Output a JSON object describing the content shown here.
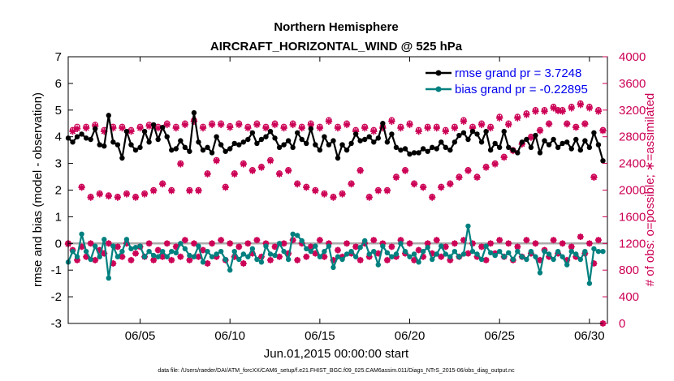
{
  "chart_data": {
    "type": "line",
    "title": "Northern Hemisphere",
    "subtitle": "AIRCRAFT_HORIZONTAL_WIND @ 525 hPa",
    "xlabel": "Jun.01,2015 00:00:00 start",
    "ylabel": "rmse and bias (model - observation)",
    "ylabel_right": "# of obs: o=possible; ∗=assimilated",
    "xlim": [
      1,
      31
    ],
    "ylim": [
      -3,
      7
    ],
    "ylim_right": [
      0,
      4000
    ],
    "x_ticks": [
      "06/05",
      "06/10",
      "06/15",
      "06/20",
      "06/25",
      "06/30"
    ],
    "x_tick_values": [
      5,
      10,
      15,
      20,
      25,
      30
    ],
    "y_ticks": [
      "-3",
      "-2",
      "-1",
      "0",
      "1",
      "2",
      "3",
      "4",
      "5",
      "6",
      "7"
    ],
    "y_tick_values": [
      -3,
      -2,
      -1,
      0,
      1,
      2,
      3,
      4,
      5,
      6,
      7
    ],
    "y_ticks_right": [
      "0",
      "400",
      "800",
      "1200",
      "1600",
      "2000",
      "2400",
      "2800",
      "3200",
      "3600",
      "4000"
    ],
    "y_tick_values_right": [
      0,
      400,
      800,
      1200,
      1600,
      2000,
      2400,
      2800,
      3200,
      3600,
      4000
    ],
    "x": [
      1.0,
      1.25,
      1.5,
      1.75,
      2.0,
      2.25,
      2.5,
      2.75,
      3.0,
      3.25,
      3.5,
      3.75,
      4.0,
      4.25,
      4.5,
      4.75,
      5.0,
      5.25,
      5.5,
      5.75,
      6.0,
      6.25,
      6.5,
      6.75,
      7.0,
      7.25,
      7.5,
      7.75,
      8.0,
      8.25,
      8.5,
      8.75,
      9.0,
      9.25,
      9.5,
      9.75,
      10.0,
      10.25,
      10.5,
      10.75,
      11.0,
      11.25,
      11.5,
      11.75,
      12.0,
      12.25,
      12.5,
      12.75,
      13.0,
      13.25,
      13.5,
      13.75,
      14.0,
      14.25,
      14.5,
      14.75,
      15.0,
      15.25,
      15.5,
      15.75,
      16.0,
      16.25,
      16.5,
      16.75,
      17.0,
      17.25,
      17.5,
      17.75,
      18.0,
      18.25,
      18.5,
      18.75,
      19.0,
      19.25,
      19.5,
      19.75,
      20.0,
      20.25,
      20.5,
      20.75,
      21.0,
      21.25,
      21.5,
      21.75,
      22.0,
      22.25,
      22.5,
      22.75,
      23.0,
      23.25,
      23.5,
      23.75,
      24.0,
      24.25,
      24.5,
      24.75,
      25.0,
      25.25,
      25.5,
      25.75,
      26.0,
      26.25,
      26.5,
      26.75,
      27.0,
      27.25,
      27.5,
      27.75,
      28.0,
      28.25,
      28.5,
      28.75,
      29.0,
      29.25,
      29.5,
      29.75,
      30.0,
      30.25,
      30.5,
      30.75
    ],
    "series": [
      {
        "name": "rmse grand pr = 3.7248",
        "legend": "rmse grand pr = 3.7248",
        "color": "#000000",
        "marker": "circle",
        "values": [
          3.95,
          3.8,
          4.0,
          4.1,
          3.95,
          3.9,
          4.3,
          3.7,
          3.65,
          4.8,
          3.8,
          3.7,
          3.2,
          4.2,
          3.7,
          3.5,
          3.6,
          4.2,
          3.8,
          4.45,
          3.9,
          4.35,
          4.0,
          3.5,
          3.55,
          3.85,
          3.6,
          3.45,
          4.9,
          3.8,
          3.5,
          3.6,
          3.4,
          4.0,
          3.7,
          3.45,
          3.55,
          3.75,
          3.7,
          3.8,
          3.9,
          4.15,
          3.75,
          3.9,
          4.0,
          4.2,
          3.95,
          3.6,
          3.7,
          3.85,
          3.6,
          4.15,
          3.9,
          3.75,
          4.3,
          3.7,
          3.5,
          4.0,
          3.7,
          3.85,
          3.2,
          3.7,
          3.5,
          3.75,
          4.1,
          3.85,
          3.9,
          4.0,
          3.8,
          3.95,
          4.5,
          3.8,
          4.1,
          3.6,
          3.5,
          3.55,
          3.35,
          3.4,
          3.4,
          3.55,
          3.45,
          3.6,
          3.55,
          3.8,
          3.6,
          3.5,
          3.8,
          4.05,
          4.15,
          3.9,
          4.2,
          4.1,
          3.8,
          4.2,
          3.5,
          3.75,
          3.6,
          4.2,
          3.6,
          3.5,
          3.4,
          3.8,
          3.9,
          3.6,
          4.05,
          3.4,
          3.85,
          3.7,
          3.9,
          3.6,
          3.75,
          3.8,
          3.55,
          3.9,
          3.5,
          3.85,
          3.6,
          4.15,
          3.7,
          3.1
        ],
        "grand_value": 3.7248
      },
      {
        "name": "bias grand pr = -0.22895",
        "legend": "bias grand pr = -0.22895",
        "color": "#00807f",
        "marker": "circle",
        "values": [
          -0.7,
          -0.3,
          -0.5,
          0.35,
          -0.3,
          -0.6,
          -0.1,
          -0.5,
          0.15,
          -1.3,
          -0.1,
          -0.5,
          -0.3,
          0.15,
          -0.2,
          -0.15,
          -0.1,
          -0.5,
          -0.3,
          -0.45,
          -0.5,
          -0.3,
          -0.5,
          -0.3,
          -0.35,
          0.0,
          -0.2,
          -0.45,
          -0.5,
          -0.1,
          -0.7,
          -0.3,
          -0.5,
          -0.4,
          -0.3,
          -0.6,
          -1.0,
          -0.3,
          -0.6,
          -0.4,
          -0.5,
          -0.2,
          -0.6,
          -0.7,
          -0.1,
          -0.4,
          -0.45,
          0.0,
          -0.3,
          -0.6,
          0.35,
          0.3,
          0.1,
          -0.2,
          -0.3,
          -0.1,
          -0.5,
          -0.3,
          -0.1,
          -0.9,
          -0.5,
          -0.6,
          -0.4,
          -0.3,
          -0.5,
          -0.15,
          0.1,
          -0.4,
          -0.3,
          -0.8,
          -0.1,
          -0.35,
          -0.5,
          -0.4,
          0.0,
          -0.3,
          -0.5,
          -0.4,
          -0.7,
          -0.3,
          -0.15,
          -0.6,
          -0.4,
          -0.1,
          -0.4,
          -0.5,
          -0.3,
          -0.5,
          -0.4,
          0.65,
          -0.3,
          -0.4,
          -0.6,
          -0.1,
          -0.35,
          -0.45,
          -0.3,
          -0.5,
          -0.35,
          -0.6,
          -0.3,
          -0.5,
          -0.6,
          -0.3,
          -0.5,
          -1.1,
          -0.3,
          -0.4,
          -0.6,
          -0.3,
          -0.5,
          -0.8,
          -0.3,
          -0.4,
          -0.6,
          -0.3,
          -1.5,
          -0.2,
          -0.3,
          -0.3
        ],
        "grand_value": -0.22895
      },
      {
        "name": "obs possible",
        "color": "#cc0055",
        "marker": "o",
        "axis": "right",
        "values": [
          1200,
          2900,
          2950,
          2050,
          2950,
          1900,
          2980,
          1950,
          2900,
          1920,
          2950,
          1900,
          2950,
          1950,
          2900,
          1900,
          2950,
          1950,
          2980,
          2000,
          2950,
          2100,
          3000,
          2000,
          2950,
          2400,
          3000,
          2000,
          3050,
          2000,
          2950,
          2250,
          3000,
          2450,
          3000,
          2050,
          2960,
          2250,
          3000,
          2400,
          2950,
          2300,
          3000,
          2350,
          2950,
          2450,
          3000,
          2250,
          2950,
          2300,
          3000,
          2100,
          2950,
          2050,
          3000,
          2000,
          2950,
          1950,
          3050,
          1900,
          2950,
          1950,
          3000,
          2100,
          2900,
          2300,
          2950,
          1900,
          2900,
          2000,
          2950,
          2000,
          3050,
          2200,
          2950,
          2300,
          3000,
          2100,
          2900,
          2050,
          2950,
          1900,
          2950,
          2050,
          2900,
          2100,
          2950,
          2200,
          3050,
          2300,
          2950,
          2200,
          3000,
          2350,
          2950,
          2400,
          3100,
          2500,
          3000,
          2600,
          3100,
          2700,
          3150,
          2800,
          3200,
          2900,
          3200,
          3000,
          3250,
          3200,
          3200,
          3000,
          3250,
          2950,
          3300,
          3000,
          3250,
          2200,
          3200,
          2900
        ]
      },
      {
        "name": "obs assimilated",
        "color": "#cc0055",
        "marker": "*",
        "axis": "right",
        "values": [
          1190,
          2880,
          2920,
          2040,
          2930,
          1890,
          2960,
          1940,
          2880,
          1910,
          2930,
          1890,
          2930,
          1940,
          2880,
          1890,
          2930,
          1940,
          2960,
          1990,
          2930,
          2090,
          2980,
          1990,
          2930,
          2390,
          2980,
          1990,
          3030,
          1990,
          2930,
          2240,
          2980,
          2440,
          2980,
          2040,
          2940,
          2240,
          2980,
          2390,
          2930,
          2290,
          2980,
          2340,
          2930,
          2440,
          2980,
          2240,
          2930,
          2290,
          2980,
          2090,
          2930,
          2040,
          2980,
          1990,
          2930,
          1940,
          3030,
          1890,
          2930,
          1940,
          2980,
          2090,
          2880,
          2290,
          2930,
          1890,
          2880,
          1990,
          2930,
          1990,
          3030,
          2190,
          2930,
          2290,
          2980,
          2090,
          2880,
          2040,
          2930,
          1890,
          2930,
          2040,
          2880,
          2090,
          2930,
          2190,
          3030,
          2290,
          2930,
          2190,
          2980,
          2340,
          2930,
          2390,
          3080,
          2490,
          2980,
          2590,
          3080,
          2690,
          3130,
          2790,
          3180,
          2890,
          3180,
          2990,
          3230,
          3190,
          3180,
          2990,
          3230,
          2940,
          3280,
          2990,
          3230,
          2190,
          3180,
          2890
        ]
      }
    ],
    "bias_obs_right": [
      1200,
      1100,
      950,
      1150,
      1000,
      1200,
      950,
      1100,
      1050,
      1200,
      900,
      1150,
      1000,
      1200,
      950,
      1050,
      1150,
      1000,
      1200,
      950,
      1100,
      1000,
      1200,
      950,
      1150,
      1000,
      1250,
      950,
      1200,
      1000,
      1100,
      900,
      1200,
      1000,
      1250,
      950,
      1200,
      1000,
      1150,
      900,
      1200,
      1050,
      1250,
      1000,
      1200,
      950,
      1150,
      1000,
      1200,
      1050,
      1250,
      950,
      1200,
      1000,
      1150,
      1050,
      1250,
      1000,
      1200,
      950,
      1100,
      1000,
      1200,
      1050,
      1150,
      950,
      1200,
      1000,
      1250,
      1050,
      1200,
      950,
      1150,
      1000,
      1250,
      1050,
      1200,
      950,
      1100,
      1000,
      1200,
      1050,
      1250,
      1000,
      1150,
      950,
      1200,
      1000,
      1250,
      1050,
      1200,
      1000,
      1150,
      950,
      1200,
      1050,
      1250,
      1000,
      1200,
      950,
      1150,
      1000,
      1250,
      1050,
      1200,
      950,
      1100,
      1000,
      1250,
      1050,
      1200,
      950,
      1150,
      1000,
      1300,
      1050,
      1200,
      900,
      1250,
      0
    ],
    "zero_line": true,
    "grid": false
  },
  "footer": "data file: /Users/raeder/DAI/ATM_forcXX/CAM6_setup/f.e21.FHIST_BGC.f09_025.CAM6assim.011/Diags_NTrS_2015-06/obs_diag_output.nc",
  "legend": {
    "placement": "top-right",
    "rmse_label": "rmse grand pr = 3.7248",
    "bias_label": "bias grand pr = -0.22895"
  },
  "colors": {
    "rmse": "#000000",
    "bias": "#00807f",
    "obs": "#cc0055",
    "legend_text": "#0000ee",
    "zero_line": "#aaaaaa"
  }
}
